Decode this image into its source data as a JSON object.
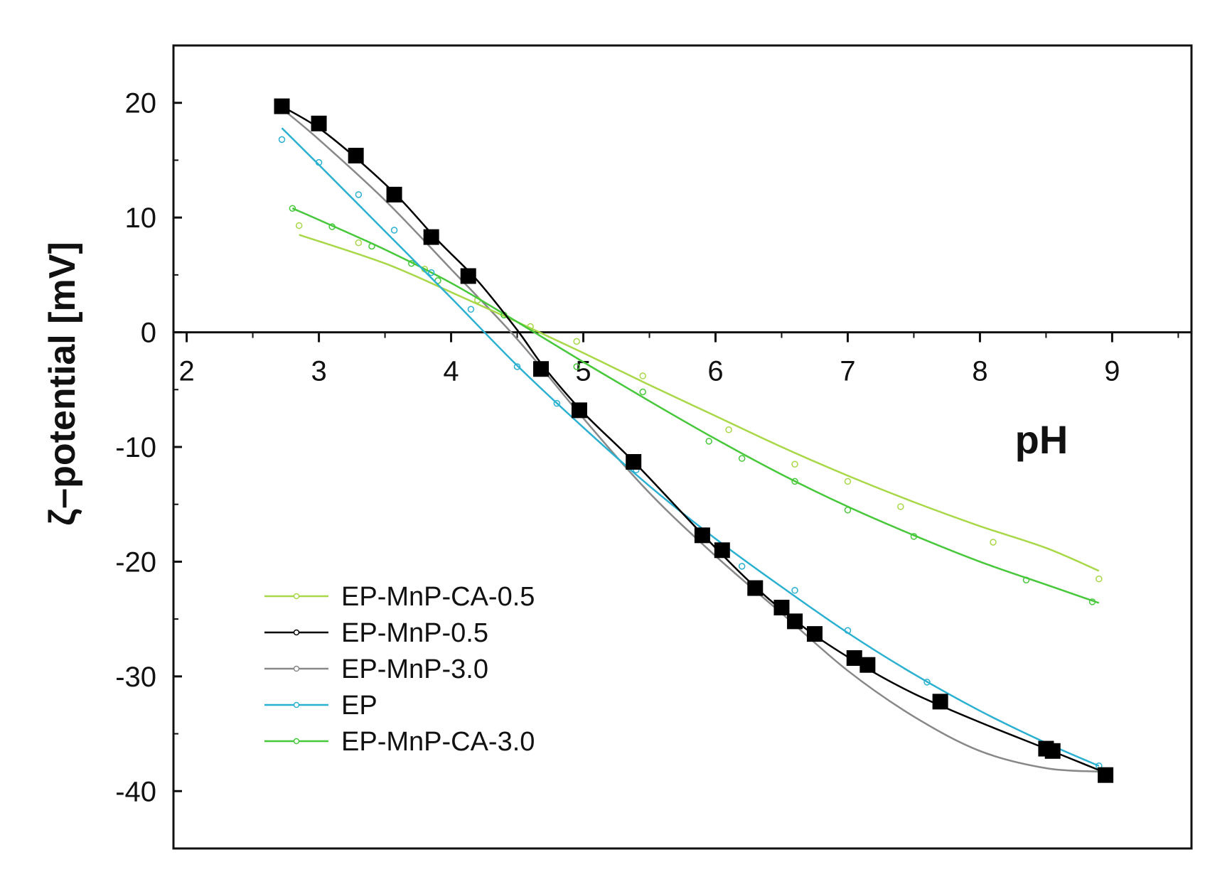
{
  "chart_data": {
    "type": "line",
    "title": "",
    "xlabel": "pH",
    "ylabel": "ζ–potential [mV]",
    "xlim": [
      1.9,
      9.6
    ],
    "ylim": [
      -45,
      25
    ],
    "xticks": [
      2,
      3,
      4,
      5,
      6,
      7,
      8,
      9
    ],
    "yticks": [
      20,
      10,
      0,
      -10,
      -20,
      -30,
      -40
    ],
    "grid": false,
    "legend_position": "bottom-left",
    "series": [
      {
        "name": "EP-MnP-CA-0.5",
        "color": "#a8d848",
        "marker": "open-circle",
        "points": [
          [
            2.85,
            9.3
          ],
          [
            3.3,
            7.8
          ],
          [
            3.8,
            5.5
          ],
          [
            4.2,
            2.8
          ],
          [
            4.6,
            0.5
          ],
          [
            4.95,
            -0.8
          ],
          [
            5.45,
            -3.8
          ],
          [
            6.1,
            -8.5
          ],
          [
            6.6,
            -11.5
          ],
          [
            7.0,
            -13.0
          ],
          [
            7.4,
            -15.2
          ],
          [
            8.1,
            -18.3
          ],
          [
            8.9,
            -21.5
          ]
        ],
        "fit": [
          [
            2.85,
            8.5
          ],
          [
            3.5,
            6.0
          ],
          [
            4.0,
            3.5
          ],
          [
            4.5,
            0.9
          ],
          [
            5.0,
            -1.8
          ],
          [
            5.5,
            -4.6
          ],
          [
            6.0,
            -7.3
          ],
          [
            6.5,
            -10.0
          ],
          [
            7.0,
            -12.5
          ],
          [
            7.5,
            -14.8
          ],
          [
            8.0,
            -16.9
          ],
          [
            8.5,
            -18.8
          ],
          [
            8.9,
            -20.8
          ]
        ]
      },
      {
        "name": "EP-MnP-0.5",
        "color": "#000000",
        "marker": "filled-square",
        "points": [
          [
            2.72,
            19.7
          ],
          [
            3.0,
            18.2
          ],
          [
            3.28,
            15.4
          ],
          [
            3.57,
            12.0
          ],
          [
            3.85,
            8.3
          ],
          [
            4.13,
            4.9
          ],
          [
            4.68,
            -3.2
          ],
          [
            4.97,
            -6.8
          ],
          [
            5.38,
            -11.3
          ],
          [
            5.9,
            -17.7
          ],
          [
            6.05,
            -19.0
          ],
          [
            6.3,
            -22.3
          ],
          [
            6.5,
            -24.0
          ],
          [
            6.6,
            -25.2
          ],
          [
            6.75,
            -26.3
          ],
          [
            7.05,
            -28.4
          ],
          [
            7.15,
            -29.0
          ],
          [
            7.7,
            -32.2
          ],
          [
            8.5,
            -36.3
          ],
          [
            8.55,
            -36.5
          ],
          [
            8.95,
            -38.6
          ]
        ],
        "fit": [
          [
            2.72,
            19.7
          ],
          [
            3.0,
            17.8
          ],
          [
            3.3,
            15.0
          ],
          [
            3.6,
            11.8
          ],
          [
            3.9,
            8.0
          ],
          [
            4.2,
            4.5
          ],
          [
            4.5,
            0.2
          ],
          [
            4.7,
            -3.0
          ],
          [
            5.0,
            -7.0
          ],
          [
            5.4,
            -11.5
          ],
          [
            5.9,
            -17.6
          ],
          [
            6.3,
            -22.2
          ],
          [
            6.7,
            -26.0
          ],
          [
            7.1,
            -29.0
          ],
          [
            7.5,
            -31.5
          ],
          [
            8.0,
            -34.0
          ],
          [
            8.5,
            -36.3
          ],
          [
            8.95,
            -38.4
          ]
        ]
      },
      {
        "name": "EP-MnP-3.0",
        "color": "#888888",
        "marker": "open-circle",
        "points": [],
        "fit": [
          [
            2.72,
            19.5
          ],
          [
            3.0,
            16.8
          ],
          [
            3.5,
            11.5
          ],
          [
            4.0,
            5.5
          ],
          [
            4.5,
            -0.6
          ],
          [
            5.0,
            -7.5
          ],
          [
            5.5,
            -14.0
          ],
          [
            6.0,
            -19.5
          ],
          [
            6.5,
            -24.5
          ],
          [
            7.0,
            -29.5
          ],
          [
            7.5,
            -33.5
          ],
          [
            8.0,
            -36.5
          ],
          [
            8.5,
            -38.0
          ],
          [
            8.9,
            -38.3
          ]
        ]
      },
      {
        "name": "EP",
        "color": "#2ab0d0",
        "marker": "open-circle",
        "points": [
          [
            2.72,
            16.8
          ],
          [
            3.0,
            14.8
          ],
          [
            3.3,
            12.0
          ],
          [
            3.57,
            8.9
          ],
          [
            3.85,
            5.2
          ],
          [
            4.15,
            2.0
          ],
          [
            4.5,
            -3.0
          ],
          [
            4.8,
            -6.2
          ],
          [
            5.4,
            -12.0
          ],
          [
            5.9,
            -17.8
          ],
          [
            6.2,
            -20.4
          ],
          [
            6.6,
            -22.5
          ],
          [
            7.0,
            -26.0
          ],
          [
            7.6,
            -30.5
          ],
          [
            8.5,
            -36.0
          ],
          [
            8.9,
            -37.8
          ]
        ],
        "fit": [
          [
            2.72,
            17.8
          ],
          [
            3.0,
            14.6
          ],
          [
            3.5,
            8.8
          ],
          [
            4.0,
            3.0
          ],
          [
            4.5,
            -2.9
          ],
          [
            5.0,
            -8.3
          ],
          [
            5.5,
            -13.4
          ],
          [
            6.0,
            -18.0
          ],
          [
            6.5,
            -22.2
          ],
          [
            7.0,
            -26.2
          ],
          [
            7.5,
            -29.8
          ],
          [
            8.0,
            -33.0
          ],
          [
            8.5,
            -35.8
          ],
          [
            8.9,
            -37.8
          ]
        ]
      },
      {
        "name": "EP-MnP-CA-3.0",
        "color": "#46c83a",
        "marker": "open-circle",
        "points": [
          [
            2.8,
            10.8
          ],
          [
            3.1,
            9.2
          ],
          [
            3.4,
            7.5
          ],
          [
            3.7,
            6.0
          ],
          [
            3.9,
            4.5
          ],
          [
            4.4,
            1.5
          ],
          [
            4.95,
            -3.0
          ],
          [
            5.45,
            -5.2
          ],
          [
            5.95,
            -9.5
          ],
          [
            6.2,
            -11.0
          ],
          [
            6.6,
            -13.0
          ],
          [
            7.0,
            -15.5
          ],
          [
            7.5,
            -17.8
          ],
          [
            8.35,
            -21.6
          ],
          [
            8.85,
            -23.5
          ]
        ],
        "fit": [
          [
            2.8,
            10.8
          ],
          [
            3.0,
            9.8
          ],
          [
            3.5,
            7.2
          ],
          [
            4.0,
            4.3
          ],
          [
            4.5,
            0.9
          ],
          [
            5.0,
            -2.6
          ],
          [
            5.5,
            -6.0
          ],
          [
            6.0,
            -9.3
          ],
          [
            6.5,
            -12.4
          ],
          [
            7.0,
            -15.2
          ],
          [
            7.5,
            -17.7
          ],
          [
            8.0,
            -20.0
          ],
          [
            8.5,
            -22.0
          ],
          [
            8.9,
            -23.6
          ]
        ]
      }
    ]
  }
}
